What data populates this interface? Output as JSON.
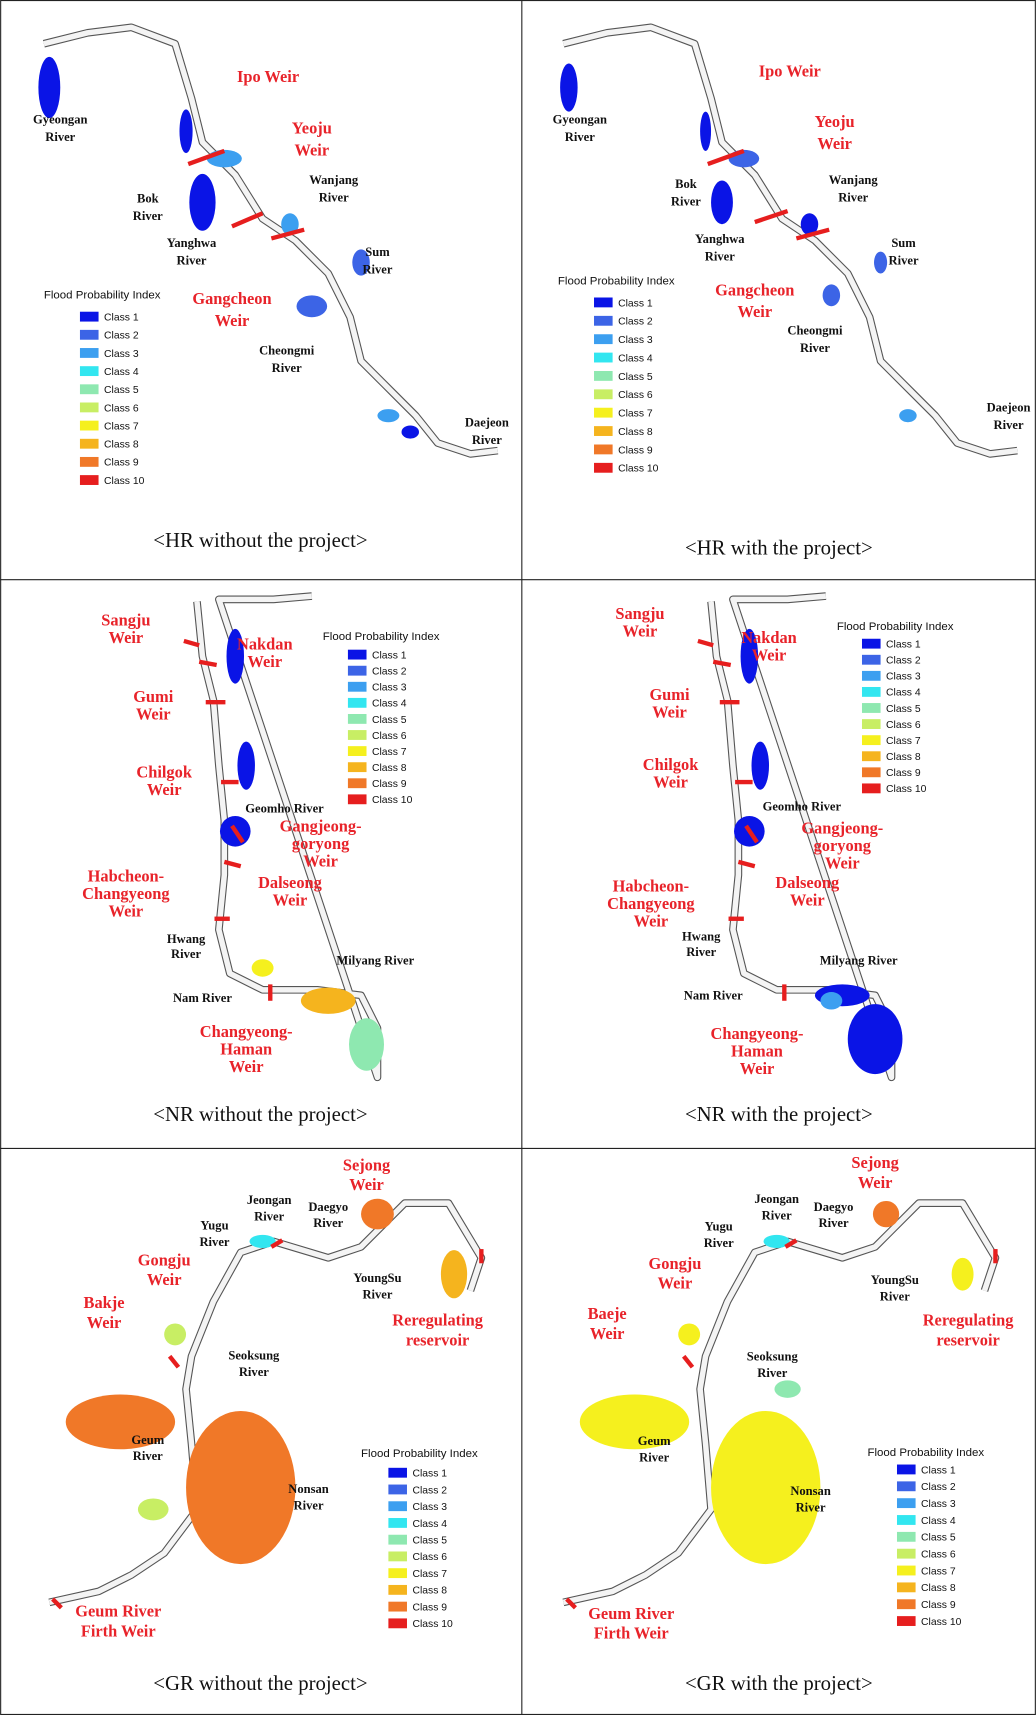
{
  "class_colors": [
    "#0a14e6",
    "#3c64e6",
    "#3c9ff0",
    "#32e6f0",
    "#8ee8b0",
    "#c8ee64",
    "#f5f01e",
    "#f5b41e",
    "#f07828",
    "#e61e1e"
  ],
  "panels": [
    {
      "caption": "<HR without the project>",
      "legend": {
        "title": "Flood Probability Index",
        "classes": [
          "Class 1",
          "Class 2",
          "Class 3",
          "Class 4",
          "Class 5",
          "Class 6",
          "Class 7",
          "Class 8",
          "Class 9",
          "Class 10"
        ]
      },
      "weirs": [
        {
          "lines": [
            "Ipo Weir"
          ]
        },
        {
          "lines": [
            "Yeoju",
            "Weir"
          ]
        },
        {
          "lines": [
            "Gangcheon",
            "Weir"
          ]
        }
      ],
      "rivers": [
        {
          "lines": [
            "Gyeongan",
            "River"
          ]
        },
        {
          "lines": [
            "Bok",
            "River"
          ]
        },
        {
          "lines": [
            "Wanjang",
            "River"
          ]
        },
        {
          "lines": [
            "Yanghwa",
            "River"
          ]
        },
        {
          "lines": [
            "Sum",
            "River"
          ]
        },
        {
          "lines": [
            "Cheongmi",
            "River"
          ]
        },
        {
          "lines": [
            "Daejeon",
            "River"
          ]
        }
      ]
    },
    {
      "caption": "<HR with the project>",
      "legend": {
        "title": "Flood Probability Index",
        "classes": [
          "Class 1",
          "Class 2",
          "Class 3",
          "Class 4",
          "Class 5",
          "Class 6",
          "Class 7",
          "Class 8",
          "Class 9",
          "Class 10"
        ]
      },
      "weirs": [
        {
          "lines": [
            "Ipo Weir"
          ]
        },
        {
          "lines": [
            "Yeoju",
            "Weir"
          ]
        },
        {
          "lines": [
            "Gangcheon",
            "Weir"
          ]
        }
      ],
      "rivers": [
        {
          "lines": [
            "Gyeongan",
            "River"
          ]
        },
        {
          "lines": [
            "Bok",
            "River"
          ]
        },
        {
          "lines": [
            "Wanjang",
            "River"
          ]
        },
        {
          "lines": [
            "Yanghwa",
            "River"
          ]
        },
        {
          "lines": [
            "Sum",
            "River"
          ]
        },
        {
          "lines": [
            "Cheongmi",
            "River"
          ]
        },
        {
          "lines": [
            "Daejeon",
            "River"
          ]
        }
      ]
    },
    {
      "caption": "<NR without the project>",
      "legend": {
        "title": "Flood Probability Index",
        "classes": [
          "Class 1",
          "Class 2",
          "Class 3",
          "Class 4",
          "Class 5",
          "Class 6",
          "Class 7",
          "Class 8",
          "Class 9",
          "Class 10"
        ]
      },
      "weirs": [
        {
          "lines": [
            "Sangju",
            "Weir"
          ]
        },
        {
          "lines": [
            "Nakdan",
            "Weir"
          ]
        },
        {
          "lines": [
            "Gumi",
            "Weir"
          ]
        },
        {
          "lines": [
            "Chilgok",
            "Weir"
          ]
        },
        {
          "lines": [
            "Gangjeong-",
            "goryong",
            "Weir"
          ]
        },
        {
          "lines": [
            "Dalseong",
            "Weir"
          ]
        },
        {
          "lines": [
            "Habcheon-",
            "Changyeong",
            "Weir"
          ]
        },
        {
          "lines": [
            "Changyeong-",
            "Haman",
            "Weir"
          ]
        }
      ],
      "rivers": [
        {
          "lines": [
            "Geomho River"
          ]
        },
        {
          "lines": [
            "Hwang",
            "River"
          ]
        },
        {
          "lines": [
            "Milyang River"
          ]
        },
        {
          "lines": [
            "Nam River"
          ]
        }
      ]
    },
    {
      "caption": "<NR with the project>",
      "legend": {
        "title": "Flood Probability Index",
        "classes": [
          "Class 1",
          "Class 2",
          "Class 3",
          "Class 4",
          "Class 5",
          "Class 6",
          "Class 7",
          "Class 8",
          "Class 9",
          "Class 10"
        ]
      },
      "weirs": [
        {
          "lines": [
            "Sangju",
            "Weir"
          ]
        },
        {
          "lines": [
            "Nakdan",
            "Weir"
          ]
        },
        {
          "lines": [
            "Gumi",
            "Weir"
          ]
        },
        {
          "lines": [
            "Chilgok",
            "Weir"
          ]
        },
        {
          "lines": [
            "Gangjeong-",
            "goryong",
            "Weir"
          ]
        },
        {
          "lines": [
            "Dalseong",
            "Weir"
          ]
        },
        {
          "lines": [
            "Habcheon-",
            "Changyeong",
            "Weir"
          ]
        },
        {
          "lines": [
            "Changyeong-",
            "Haman",
            "Weir"
          ]
        }
      ],
      "rivers": [
        {
          "lines": [
            "Geomho River"
          ]
        },
        {
          "lines": [
            "Hwang",
            "River"
          ]
        },
        {
          "lines": [
            "Milyang River"
          ]
        },
        {
          "lines": [
            "Nam River"
          ]
        }
      ]
    },
    {
      "caption": "<GR without the project>",
      "legend": {
        "title": "Flood Probability Index",
        "classes": [
          "Class 1",
          "Class 2",
          "Class 3",
          "Class 4",
          "Class 5",
          "Class 6",
          "Class 7",
          "Class 8",
          "Class 9",
          "Class 10"
        ]
      },
      "weirs": [
        {
          "lines": [
            "Sejong",
            "Weir"
          ]
        },
        {
          "lines": [
            "Gongju",
            "Weir"
          ]
        },
        {
          "lines": [
            "Bakje",
            "Weir"
          ]
        },
        {
          "lines": [
            "Reregulating",
            "reservoir"
          ]
        },
        {
          "lines": [
            "Geum River",
            "Firth Weir"
          ]
        }
      ],
      "rivers": [
        {
          "lines": [
            "Jeongan",
            "River"
          ]
        },
        {
          "lines": [
            "Daegyo",
            "River"
          ]
        },
        {
          "lines": [
            "Yugu",
            "River"
          ]
        },
        {
          "lines": [
            "YoungSu",
            "River"
          ]
        },
        {
          "lines": [
            "Seoksung",
            "River"
          ]
        },
        {
          "lines": [
            "Geum",
            "River"
          ]
        },
        {
          "lines": [
            "Nonsan",
            "River"
          ]
        }
      ]
    },
    {
      "caption": "<GR with the project>",
      "legend": {
        "title": "Flood Probability Index",
        "classes": [
          "Class 1",
          "Class 2",
          "Class 3",
          "Class 4",
          "Class 5",
          "Class 6",
          "Class 7",
          "Class 8",
          "Class 9",
          "Class 10"
        ]
      },
      "weirs": [
        {
          "lines": [
            "Sejong",
            "Weir"
          ]
        },
        {
          "lines": [
            "Gongju",
            "Weir"
          ]
        },
        {
          "lines": [
            "Baeje",
            "Weir"
          ]
        },
        {
          "lines": [
            "Reregulating",
            "reservoir"
          ]
        },
        {
          "lines": [
            "Geum River",
            "Firth Weir"
          ]
        }
      ],
      "rivers": [
        {
          "lines": [
            "Jeongan",
            "River"
          ]
        },
        {
          "lines": [
            "Daegyo",
            "River"
          ]
        },
        {
          "lines": [
            "Yugu",
            "River"
          ]
        },
        {
          "lines": [
            "YoungSu",
            "River"
          ]
        },
        {
          "lines": [
            "Seoksung",
            "River"
          ]
        },
        {
          "lines": [
            "Geum",
            "River"
          ]
        },
        {
          "lines": [
            "Nonsan",
            "River"
          ]
        }
      ]
    }
  ]
}
